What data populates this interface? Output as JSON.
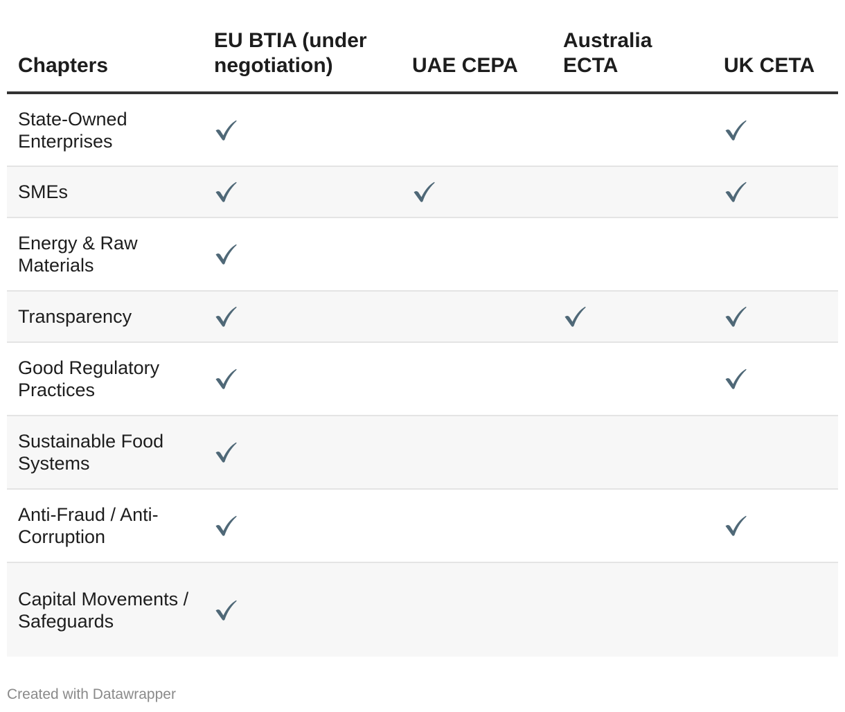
{
  "chart_data": {
    "type": "table",
    "columns": [
      "Chapters",
      "EU BTIA (under negotiation)",
      "UAE CEPA",
      "Australia ECTA",
      "UK CETA"
    ],
    "rows": [
      {
        "chapter": "State-Owned Enterprises",
        "checks": [
          true,
          false,
          false,
          true
        ]
      },
      {
        "chapter": "SMEs",
        "checks": [
          true,
          true,
          false,
          true
        ]
      },
      {
        "chapter": "Energy & Raw Materials",
        "checks": [
          true,
          false,
          false,
          false
        ]
      },
      {
        "chapter": "Transparency",
        "checks": [
          true,
          false,
          true,
          true
        ]
      },
      {
        "chapter": "Good Regulatory Practices",
        "checks": [
          true,
          false,
          false,
          true
        ]
      },
      {
        "chapter": "Sustainable Food Systems",
        "checks": [
          true,
          false,
          false,
          false
        ]
      },
      {
        "chapter": "Anti-Fraud / Anti-Corruption",
        "checks": [
          true,
          false,
          false,
          true
        ]
      },
      {
        "chapter": "Capital Movements / Safeguards",
        "checks": [
          true,
          false,
          false,
          false
        ]
      }
    ],
    "check_icon": "checkmark-icon",
    "check_color": "#4f6877"
  },
  "footer": {
    "credit": "Created with Datawrapper"
  }
}
